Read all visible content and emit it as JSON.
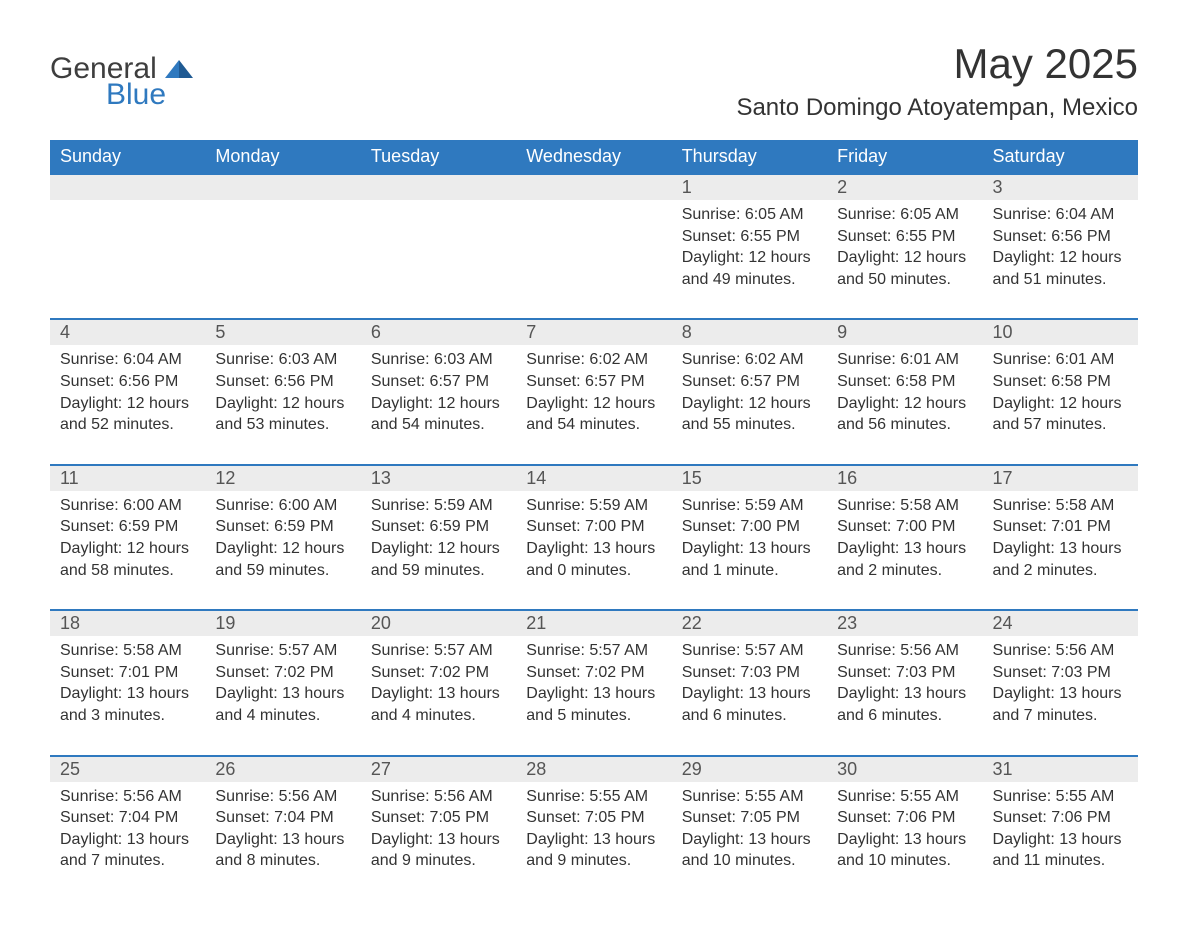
{
  "brand": {
    "part1": "General",
    "part2": "Blue",
    "shape_color": "#2f79bf"
  },
  "title": "May 2025",
  "location": "Santo Domingo Atoyatempan, Mexico",
  "colors": {
    "header_bg": "#2f79bf",
    "header_text": "#ffffff",
    "daynum_bg": "#ececec",
    "border_top": "#2f79bf",
    "body_text": "#333333"
  },
  "weekdays": [
    "Sunday",
    "Monday",
    "Tuesday",
    "Wednesday",
    "Thursday",
    "Friday",
    "Saturday"
  ],
  "weeks": [
    [
      null,
      null,
      null,
      null,
      {
        "n": "1",
        "sunrise": "6:05 AM",
        "sunset": "6:55 PM",
        "daylight": "12 hours and 49 minutes."
      },
      {
        "n": "2",
        "sunrise": "6:05 AM",
        "sunset": "6:55 PM",
        "daylight": "12 hours and 50 minutes."
      },
      {
        "n": "3",
        "sunrise": "6:04 AM",
        "sunset": "6:56 PM",
        "daylight": "12 hours and 51 minutes."
      }
    ],
    [
      {
        "n": "4",
        "sunrise": "6:04 AM",
        "sunset": "6:56 PM",
        "daylight": "12 hours and 52 minutes."
      },
      {
        "n": "5",
        "sunrise": "6:03 AM",
        "sunset": "6:56 PM",
        "daylight": "12 hours and 53 minutes."
      },
      {
        "n": "6",
        "sunrise": "6:03 AM",
        "sunset": "6:57 PM",
        "daylight": "12 hours and 54 minutes."
      },
      {
        "n": "7",
        "sunrise": "6:02 AM",
        "sunset": "6:57 PM",
        "daylight": "12 hours and 54 minutes."
      },
      {
        "n": "8",
        "sunrise": "6:02 AM",
        "sunset": "6:57 PM",
        "daylight": "12 hours and 55 minutes."
      },
      {
        "n": "9",
        "sunrise": "6:01 AM",
        "sunset": "6:58 PM",
        "daylight": "12 hours and 56 minutes."
      },
      {
        "n": "10",
        "sunrise": "6:01 AM",
        "sunset": "6:58 PM",
        "daylight": "12 hours and 57 minutes."
      }
    ],
    [
      {
        "n": "11",
        "sunrise": "6:00 AM",
        "sunset": "6:59 PM",
        "daylight": "12 hours and 58 minutes."
      },
      {
        "n": "12",
        "sunrise": "6:00 AM",
        "sunset": "6:59 PM",
        "daylight": "12 hours and 59 minutes."
      },
      {
        "n": "13",
        "sunrise": "5:59 AM",
        "sunset": "6:59 PM",
        "daylight": "12 hours and 59 minutes."
      },
      {
        "n": "14",
        "sunrise": "5:59 AM",
        "sunset": "7:00 PM",
        "daylight": "13 hours and 0 minutes."
      },
      {
        "n": "15",
        "sunrise": "5:59 AM",
        "sunset": "7:00 PM",
        "daylight": "13 hours and 1 minute."
      },
      {
        "n": "16",
        "sunrise": "5:58 AM",
        "sunset": "7:00 PM",
        "daylight": "13 hours and 2 minutes."
      },
      {
        "n": "17",
        "sunrise": "5:58 AM",
        "sunset": "7:01 PM",
        "daylight": "13 hours and 2 minutes."
      }
    ],
    [
      {
        "n": "18",
        "sunrise": "5:58 AM",
        "sunset": "7:01 PM",
        "daylight": "13 hours and 3 minutes."
      },
      {
        "n": "19",
        "sunrise": "5:57 AM",
        "sunset": "7:02 PM",
        "daylight": "13 hours and 4 minutes."
      },
      {
        "n": "20",
        "sunrise": "5:57 AM",
        "sunset": "7:02 PM",
        "daylight": "13 hours and 4 minutes."
      },
      {
        "n": "21",
        "sunrise": "5:57 AM",
        "sunset": "7:02 PM",
        "daylight": "13 hours and 5 minutes."
      },
      {
        "n": "22",
        "sunrise": "5:57 AM",
        "sunset": "7:03 PM",
        "daylight": "13 hours and 6 minutes."
      },
      {
        "n": "23",
        "sunrise": "5:56 AM",
        "sunset": "7:03 PM",
        "daylight": "13 hours and 6 minutes."
      },
      {
        "n": "24",
        "sunrise": "5:56 AM",
        "sunset": "7:03 PM",
        "daylight": "13 hours and 7 minutes."
      }
    ],
    [
      {
        "n": "25",
        "sunrise": "5:56 AM",
        "sunset": "7:04 PM",
        "daylight": "13 hours and 7 minutes."
      },
      {
        "n": "26",
        "sunrise": "5:56 AM",
        "sunset": "7:04 PM",
        "daylight": "13 hours and 8 minutes."
      },
      {
        "n": "27",
        "sunrise": "5:56 AM",
        "sunset": "7:05 PM",
        "daylight": "13 hours and 9 minutes."
      },
      {
        "n": "28",
        "sunrise": "5:55 AM",
        "sunset": "7:05 PM",
        "daylight": "13 hours and 9 minutes."
      },
      {
        "n": "29",
        "sunrise": "5:55 AM",
        "sunset": "7:05 PM",
        "daylight": "13 hours and 10 minutes."
      },
      {
        "n": "30",
        "sunrise": "5:55 AM",
        "sunset": "7:06 PM",
        "daylight": "13 hours and 10 minutes."
      },
      {
        "n": "31",
        "sunrise": "5:55 AM",
        "sunset": "7:06 PM",
        "daylight": "13 hours and 11 minutes."
      }
    ]
  ],
  "labels": {
    "sunrise": "Sunrise: ",
    "sunset": "Sunset: ",
    "daylight": "Daylight: "
  }
}
